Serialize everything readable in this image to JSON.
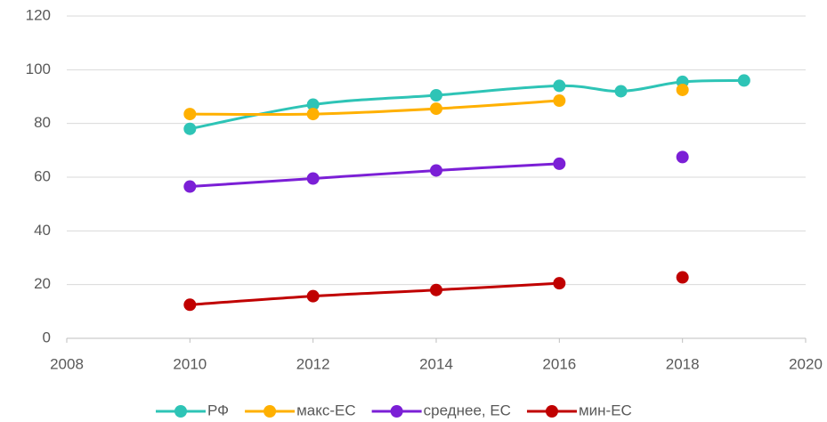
{
  "chart_data": {
    "type": "line",
    "x": [
      2010,
      2012,
      2014,
      2016,
      2017,
      2018,
      2019
    ],
    "series": [
      {
        "name": "РФ",
        "color": "#2ec4b6",
        "values": [
          78,
          87,
          90.5,
          94,
          92,
          95.5,
          96
        ]
      },
      {
        "name": "макс-ЕС",
        "color": "#ffb000",
        "values": [
          83.5,
          83.5,
          85.5,
          88.5,
          null,
          92.5,
          null
        ]
      },
      {
        "name": "среднее, ЕС",
        "color": "#7b1fd6",
        "values": [
          56.5,
          59.5,
          62.5,
          65,
          null,
          67.5,
          null
        ]
      },
      {
        "name": "мин-ЕС",
        "color": "#c00000",
        "values": [
          12.5,
          15.7,
          18,
          20.5,
          null,
          22.7,
          null
        ]
      }
    ],
    "xlim": [
      2008,
      2020
    ],
    "xticks": [
      2008,
      2010,
      2012,
      2014,
      2016,
      2018,
      2020
    ],
    "ylim": [
      0,
      120
    ],
    "yticks": [
      0,
      20,
      40,
      60,
      80,
      100,
      120
    ],
    "grid": true,
    "legend": "bottom"
  }
}
